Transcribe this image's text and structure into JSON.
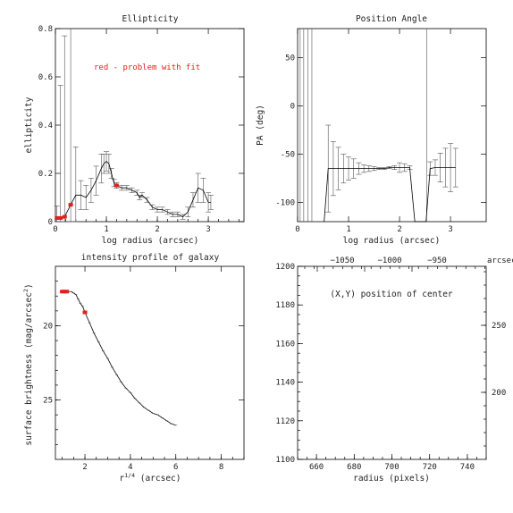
{
  "chart_data": [
    {
      "type": "line",
      "title": "Ellipticity",
      "xlabel": "log radius (arcsec)",
      "ylabel": "ellipticity",
      "xlim": [
        0,
        3.7
      ],
      "ylim": [
        0,
        0.8
      ],
      "xticks": [
        0,
        1,
        2,
        3
      ],
      "yticks": [
        0,
        0.2,
        0.4,
        0.6,
        0.8
      ],
      "annotation": "red - problem with fit",
      "x": [
        0.03,
        0.1,
        0.18,
        0.3,
        0.4,
        0.5,
        0.6,
        0.7,
        0.8,
        0.9,
        0.95,
        1.0,
        1.05,
        1.1,
        1.15,
        1.2,
        1.3,
        1.4,
        1.5,
        1.6,
        1.65,
        1.7,
        1.8,
        1.9,
        2.0,
        2.1,
        2.2,
        2.3,
        2.4,
        2.5,
        2.6,
        2.7,
        2.8,
        2.9,
        3.0,
        3.05
      ],
      "y": [
        0.015,
        0.015,
        0.02,
        0.07,
        0.11,
        0.11,
        0.1,
        0.13,
        0.17,
        0.22,
        0.24,
        0.25,
        0.24,
        0.2,
        0.16,
        0.15,
        0.14,
        0.14,
        0.13,
        0.12,
        0.1,
        0.11,
        0.09,
        0.06,
        0.05,
        0.05,
        0.04,
        0.03,
        0.03,
        0.02,
        0.04,
        0.09,
        0.14,
        0.13,
        0.08,
        0.08
      ],
      "yerr": [
        0.05,
        0.55,
        0.75,
        0.74,
        0.2,
        0.06,
        0.05,
        0.05,
        0.06,
        0.06,
        0.04,
        0.04,
        0.04,
        0.02,
        0.015,
        0.012,
        0.01,
        0.01,
        0.01,
        0.01,
        0.01,
        0.01,
        0.01,
        0.01,
        0.01,
        0.01,
        0.01,
        0.01,
        0.01,
        0.01,
        0.02,
        0.03,
        0.06,
        0.05,
        0.04,
        0.03
      ],
      "flagged_indices": [
        0,
        1,
        2,
        3,
        15
      ]
    },
    {
      "type": "line",
      "title": "Position Angle",
      "xlabel": "log radius (arcsec)",
      "ylabel": "PA (deg)",
      "xlim": [
        0,
        3.7
      ],
      "ylim": [
        -120,
        80
      ],
      "xticks": [
        0,
        1,
        2,
        3
      ],
      "yticks": [
        50,
        0,
        -50,
        -100
      ],
      "x": [
        0.6,
        0.7,
        0.8,
        0.9,
        1.0,
        1.1,
        1.2,
        1.3,
        1.4,
        1.5,
        1.6,
        1.7,
        1.8,
        1.9,
        2.0,
        2.1,
        2.2,
        2.6,
        2.7,
        2.8,
        2.9,
        3.0,
        3.1
      ],
      "y": [
        -65,
        -65,
        -65,
        -65,
        -65,
        -65,
        -65,
        -65,
        -65,
        -65,
        -65,
        -65,
        -64,
        -64,
        -64,
        -64,
        -64,
        -65,
        -64,
        -64,
        -64,
        -64,
        -64
      ],
      "yerr": [
        45,
        28,
        22,
        15,
        12,
        10,
        6,
        4,
        3,
        2,
        1,
        1,
        1,
        2,
        5,
        4,
        2,
        7,
        8,
        15,
        20,
        25,
        20
      ]
    },
    {
      "type": "line",
      "title": "intensity profile of galaxy",
      "xlabel": "r¹ᐟ⁴ (arcsec)",
      "ylabel": "surface brightness (mag/arcsec²)",
      "xlim": [
        0.7,
        9
      ],
      "ylim": [
        29,
        16
      ],
      "xticks": [
        2,
        4,
        6,
        8
      ],
      "yticks": [
        20,
        25
      ],
      "x": [
        1.0,
        1.1,
        1.2,
        1.3,
        1.4,
        1.5,
        1.6,
        1.7,
        1.8,
        1.9,
        2.0,
        2.2,
        2.4,
        2.6,
        2.8,
        3.0,
        3.2,
        3.4,
        3.6,
        3.8,
        4.0,
        4.2,
        4.4,
        4.6,
        4.8,
        5.0,
        5.2,
        5.4,
        5.6,
        5.8,
        6.0
      ],
      "y": [
        17.7,
        17.7,
        17.7,
        17.7,
        17.7,
        17.8,
        17.9,
        18.2,
        18.5,
        18.7,
        19.1,
        19.8,
        20.5,
        21.1,
        21.7,
        22.2,
        22.8,
        23.3,
        23.8,
        24.2,
        24.5,
        24.9,
        25.2,
        25.5,
        25.7,
        25.9,
        26.0,
        26.2,
        26.4,
        26.6,
        26.7
      ],
      "flagged_indices": [
        0,
        1,
        2,
        10
      ]
    },
    {
      "type": "scatter",
      "title": "(X,Y) position of center",
      "xlabel": "radius (pixels)",
      "xlim": [
        650,
        750
      ],
      "ylim": [
        1100,
        1200
      ],
      "xticks": [
        660,
        680,
        700,
        720,
        740
      ],
      "yticks": [
        1100,
        1120,
        1140,
        1160,
        1180,
        1200
      ],
      "top_axis": {
        "label": "arcsec",
        "ticks": [
          "−1050",
          "−1000",
          "−950"
        ]
      },
      "right_axis": {
        "ticks": [
          "250",
          "200"
        ]
      },
      "points": []
    }
  ]
}
